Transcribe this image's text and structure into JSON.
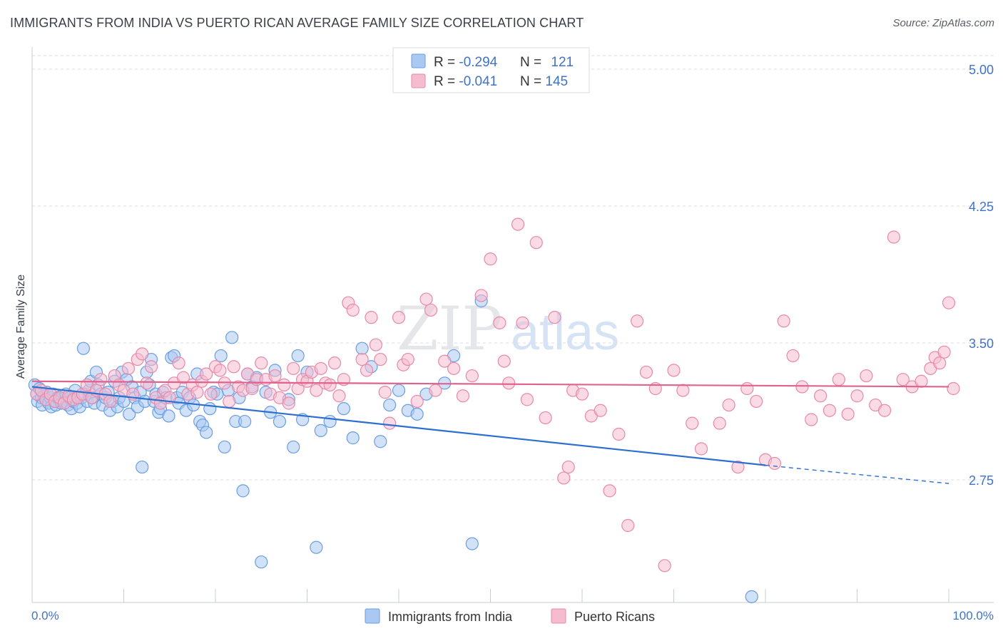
{
  "title": "IMMIGRANTS FROM INDIA VS PUERTO RICAN AVERAGE FAMILY SIZE CORRELATION CHART",
  "source": "Source: ZipAtlas.com",
  "watermark": {
    "zip": "ZIP",
    "atlas": "atlas"
  },
  "legend_box": {
    "rows": [
      {
        "r_label": "R = ",
        "r_value": "-0.294",
        "n_label": "N = ",
        "n_value": "121"
      },
      {
        "r_label": "R = ",
        "r_value": "-0.041",
        "n_label": "N = ",
        "n_value": "145"
      }
    ]
  },
  "colors": {
    "blue_fill": "#a9c8f2",
    "blue_stroke": "#6a9ee0",
    "blue_line": "#2b6fd0",
    "pink_fill": "#f5bcd0",
    "pink_stroke": "#e889a8",
    "pink_line": "#e0628e",
    "axis_label": "#3f73c8",
    "grid": "#d9dce2"
  },
  "chart_data": {
    "type": "scatter",
    "xlabel": "",
    "ylabel": "Average Family Size",
    "xlim": [
      0,
      100
    ],
    "ylim": [
      2.0,
      5.1
    ],
    "x_tick_labels": [
      "0.0%",
      "100.0%"
    ],
    "y_ticks": [
      5.0,
      4.25,
      3.5,
      2.75
    ],
    "y_tick_labels": [
      "5.00",
      "4.25",
      "3.50",
      "2.75"
    ],
    "grid": true,
    "legend_position": "bottom",
    "series": [
      {
        "name": "Immigrants from India",
        "color": "#a9c8f2",
        "trend": {
          "x": [
            0,
            80,
            100
          ],
          "y": [
            3.26,
            2.83,
            2.73
          ],
          "solid_until": 80
        },
        "points": [
          [
            0.3,
            3.27
          ],
          [
            0.5,
            3.22
          ],
          [
            0.6,
            3.18
          ],
          [
            0.8,
            3.25
          ],
          [
            1.0,
            3.2
          ],
          [
            1.1,
            3.16
          ],
          [
            1.3,
            3.21
          ],
          [
            1.5,
            3.19
          ],
          [
            1.6,
            3.23
          ],
          [
            1.8,
            3.17
          ],
          [
            2.0,
            3.2
          ],
          [
            2.1,
            3.15
          ],
          [
            2.3,
            3.22
          ],
          [
            2.5,
            3.18
          ],
          [
            2.6,
            3.16
          ],
          [
            2.8,
            3.2
          ],
          [
            3.0,
            3.19
          ],
          [
            3.2,
            3.17
          ],
          [
            3.3,
            3.21
          ],
          [
            3.5,
            3.18
          ],
          [
            3.7,
            3.22
          ],
          [
            3.9,
            3.16
          ],
          [
            4.1,
            3.2
          ],
          [
            4.3,
            3.14
          ],
          [
            4.5,
            3.18
          ],
          [
            4.7,
            3.24
          ],
          [
            4.9,
            3.17
          ],
          [
            5.2,
            3.15
          ],
          [
            5.4,
            3.2
          ],
          [
            5.6,
            3.47
          ],
          [
            5.8,
            3.22
          ],
          [
            6.0,
            3.18
          ],
          [
            6.2,
            3.24
          ],
          [
            6.4,
            3.29
          ],
          [
            6.6,
            3.2
          ],
          [
            6.8,
            3.17
          ],
          [
            7.0,
            3.34
          ],
          [
            7.2,
            3.27
          ],
          [
            7.5,
            3.22
          ],
          [
            7.7,
            3.16
          ],
          [
            8.0,
            3.2
          ],
          [
            8.3,
            3.23
          ],
          [
            8.5,
            3.13
          ],
          [
            8.8,
            3.18
          ],
          [
            9.0,
            3.29
          ],
          [
            9.3,
            3.15
          ],
          [
            9.5,
            3.2
          ],
          [
            9.8,
            3.34
          ],
          [
            10.0,
            3.18
          ],
          [
            10.3,
            3.3
          ],
          [
            10.6,
            3.11
          ],
          [
            10.9,
            3.26
          ],
          [
            11.2,
            3.2
          ],
          [
            11.5,
            3.15
          ],
          [
            11.8,
            3.23
          ],
          [
            12.0,
            2.82
          ],
          [
            12.3,
            3.18
          ],
          [
            12.5,
            3.34
          ],
          [
            12.8,
            3.27
          ],
          [
            13.0,
            3.41
          ],
          [
            13.3,
            3.18
          ],
          [
            13.5,
            3.22
          ],
          [
            13.8,
            3.12
          ],
          [
            14.0,
            3.14
          ],
          [
            14.3,
            3.23
          ],
          [
            14.6,
            3.2
          ],
          [
            14.9,
            3.1
          ],
          [
            15.2,
            3.42
          ],
          [
            15.5,
            3.43
          ],
          [
            15.8,
            3.2
          ],
          [
            16.0,
            3.17
          ],
          [
            16.4,
            3.23
          ],
          [
            16.8,
            3.13
          ],
          [
            17.2,
            3.2
          ],
          [
            17.6,
            3.16
          ],
          [
            18.0,
            3.33
          ],
          [
            18.3,
            3.07
          ],
          [
            18.6,
            3.05
          ],
          [
            19.0,
            3.01
          ],
          [
            19.4,
            3.14
          ],
          [
            19.8,
            3.23
          ],
          [
            20.2,
            3.22
          ],
          [
            20.6,
            3.43
          ],
          [
            21.0,
            2.93
          ],
          [
            21.4,
            3.24
          ],
          [
            21.8,
            3.53
          ],
          [
            22.2,
            3.07
          ],
          [
            22.6,
            3.2
          ],
          [
            23.0,
            2.69
          ],
          [
            23.2,
            3.07
          ],
          [
            23.5,
            3.33
          ],
          [
            24.0,
            3.26
          ],
          [
            24.5,
            3.31
          ],
          [
            25.0,
            2.3
          ],
          [
            25.5,
            3.23
          ],
          [
            26.0,
            3.12
          ],
          [
            26.5,
            3.35
          ],
          [
            27.0,
            3.07
          ],
          [
            28.0,
            3.19
          ],
          [
            28.5,
            2.93
          ],
          [
            29.0,
            3.43
          ],
          [
            29.5,
            3.08
          ],
          [
            30.0,
            3.34
          ],
          [
            31.0,
            2.38
          ],
          [
            31.5,
            3.02
          ],
          [
            32.5,
            3.07
          ],
          [
            34.0,
            3.14
          ],
          [
            35.0,
            2.98
          ],
          [
            36.0,
            3.47
          ],
          [
            37.0,
            3.37
          ],
          [
            38.0,
            2.96
          ],
          [
            39.0,
            3.16
          ],
          [
            40.0,
            3.24
          ],
          [
            41.0,
            3.13
          ],
          [
            42.0,
            3.11
          ],
          [
            43.0,
            3.22
          ],
          [
            45.0,
            3.28
          ],
          [
            46.0,
            3.43
          ],
          [
            48.0,
            2.4
          ],
          [
            49.0,
            3.73
          ],
          [
            78.5,
            2.11
          ]
        ]
      },
      {
        "name": "Puerto Ricans",
        "color": "#f5bcd0",
        "trend": {
          "x": [
            0,
            100
          ],
          "y": [
            3.29,
            3.26
          ],
          "solid_until": 100
        },
        "points": [
          [
            0.5,
            3.22
          ],
          [
            1.0,
            3.24
          ],
          [
            1.5,
            3.19
          ],
          [
            2.0,
            3.22
          ],
          [
            2.5,
            3.18
          ],
          [
            3.0,
            3.2
          ],
          [
            3.5,
            3.17
          ],
          [
            4.0,
            3.21
          ],
          [
            4.5,
            3.19
          ],
          [
            5.0,
            3.2
          ],
          [
            5.5,
            3.22
          ],
          [
            6.0,
            3.27
          ],
          [
            6.5,
            3.2
          ],
          [
            7.0,
            3.24
          ],
          [
            7.5,
            3.3
          ],
          [
            8.0,
            3.22
          ],
          [
            8.5,
            3.18
          ],
          [
            9.0,
            3.32
          ],
          [
            9.5,
            3.27
          ],
          [
            10.0,
            3.24
          ],
          [
            10.5,
            3.36
          ],
          [
            11.0,
            3.22
          ],
          [
            11.5,
            3.41
          ],
          [
            12.0,
            3.44
          ],
          [
            12.5,
            3.28
          ],
          [
            13.0,
            3.37
          ],
          [
            13.5,
            3.2
          ],
          [
            14.0,
            3.17
          ],
          [
            14.5,
            3.24
          ],
          [
            15.0,
            3.2
          ],
          [
            15.5,
            3.28
          ],
          [
            16.0,
            3.39
          ],
          [
            16.5,
            3.31
          ],
          [
            17.0,
            3.22
          ],
          [
            17.5,
            3.27
          ],
          [
            18.0,
            3.23
          ],
          [
            18.5,
            3.29
          ],
          [
            19.0,
            3.33
          ],
          [
            19.5,
            3.22
          ],
          [
            20.0,
            3.37
          ],
          [
            20.5,
            3.35
          ],
          [
            21.0,
            3.28
          ],
          [
            21.5,
            3.18
          ],
          [
            22.0,
            3.37
          ],
          [
            22.5,
            3.26
          ],
          [
            23.0,
            3.24
          ],
          [
            23.5,
            3.33
          ],
          [
            24.0,
            3.25
          ],
          [
            24.5,
            3.3
          ],
          [
            25.0,
            3.39
          ],
          [
            25.5,
            3.3
          ],
          [
            26.0,
            3.22
          ],
          [
            26.5,
            3.32
          ],
          [
            27.0,
            3.2
          ],
          [
            27.5,
            3.27
          ],
          [
            28.0,
            3.17
          ],
          [
            28.5,
            3.36
          ],
          [
            29.0,
            3.25
          ],
          [
            29.5,
            3.3
          ],
          [
            30.0,
            3.29
          ],
          [
            30.5,
            3.34
          ],
          [
            31.0,
            3.24
          ],
          [
            31.5,
            3.36
          ],
          [
            32.0,
            3.28
          ],
          [
            32.5,
            3.27
          ],
          [
            33.0,
            3.39
          ],
          [
            33.5,
            3.21
          ],
          [
            34.0,
            3.3
          ],
          [
            34.5,
            3.72
          ],
          [
            35.0,
            3.68
          ],
          [
            36.0,
            3.41
          ],
          [
            36.5,
            3.35
          ],
          [
            37.0,
            3.64
          ],
          [
            37.5,
            3.49
          ],
          [
            38.0,
            3.41
          ],
          [
            38.5,
            3.23
          ],
          [
            39.0,
            3.06
          ],
          [
            40.0,
            3.64
          ],
          [
            40.5,
            3.38
          ],
          [
            41.0,
            3.41
          ],
          [
            42.0,
            3.18
          ],
          [
            43.0,
            3.74
          ],
          [
            43.5,
            3.68
          ],
          [
            44.0,
            3.24
          ],
          [
            45.0,
            3.4
          ],
          [
            46.0,
            3.36
          ],
          [
            47.0,
            3.21
          ],
          [
            48.0,
            3.32
          ],
          [
            49.0,
            3.76
          ],
          [
            50.0,
            3.96
          ],
          [
            51.0,
            3.61
          ],
          [
            51.5,
            3.4
          ],
          [
            52.0,
            3.28
          ],
          [
            53.0,
            4.15
          ],
          [
            53.5,
            3.61
          ],
          [
            54.0,
            3.19
          ],
          [
            55.0,
            4.05
          ],
          [
            56.0,
            3.09
          ],
          [
            57.0,
            3.64
          ],
          [
            58.0,
            2.76
          ],
          [
            58.5,
            2.82
          ],
          [
            59.0,
            3.24
          ],
          [
            60.0,
            3.22
          ],
          [
            61.0,
            3.1
          ],
          [
            62.0,
            3.13
          ],
          [
            63.0,
            2.69
          ],
          [
            64.0,
            3.0
          ],
          [
            65.0,
            2.5
          ],
          [
            66.0,
            3.62
          ],
          [
            67.0,
            3.34
          ],
          [
            68.0,
            3.25
          ],
          [
            69.0,
            2.28
          ],
          [
            70.0,
            3.35
          ],
          [
            71.0,
            3.24
          ],
          [
            72.0,
            3.06
          ],
          [
            73.0,
            2.92
          ],
          [
            75.0,
            3.06
          ],
          [
            76.0,
            3.16
          ],
          [
            77.0,
            2.82
          ],
          [
            78.0,
            3.25
          ],
          [
            79.0,
            3.18
          ],
          [
            80.0,
            2.86
          ],
          [
            81.0,
            2.84
          ],
          [
            82.0,
            3.62
          ],
          [
            83.0,
            3.43
          ],
          [
            84.0,
            3.26
          ],
          [
            85.0,
            3.08
          ],
          [
            86.0,
            3.21
          ],
          [
            87.0,
            3.13
          ],
          [
            88.0,
            3.3
          ],
          [
            89.0,
            3.11
          ],
          [
            90.0,
            3.21
          ],
          [
            91.0,
            3.32
          ],
          [
            92.0,
            3.16
          ],
          [
            93.0,
            3.13
          ],
          [
            94.0,
            4.08
          ],
          [
            95.0,
            3.3
          ],
          [
            96.0,
            3.26
          ],
          [
            97.0,
            3.29
          ],
          [
            98.0,
            3.36
          ],
          [
            98.5,
            3.42
          ],
          [
            99.0,
            3.39
          ],
          [
            99.5,
            3.45
          ],
          [
            100.0,
            3.72
          ],
          [
            100.5,
            3.25
          ]
        ]
      }
    ]
  }
}
